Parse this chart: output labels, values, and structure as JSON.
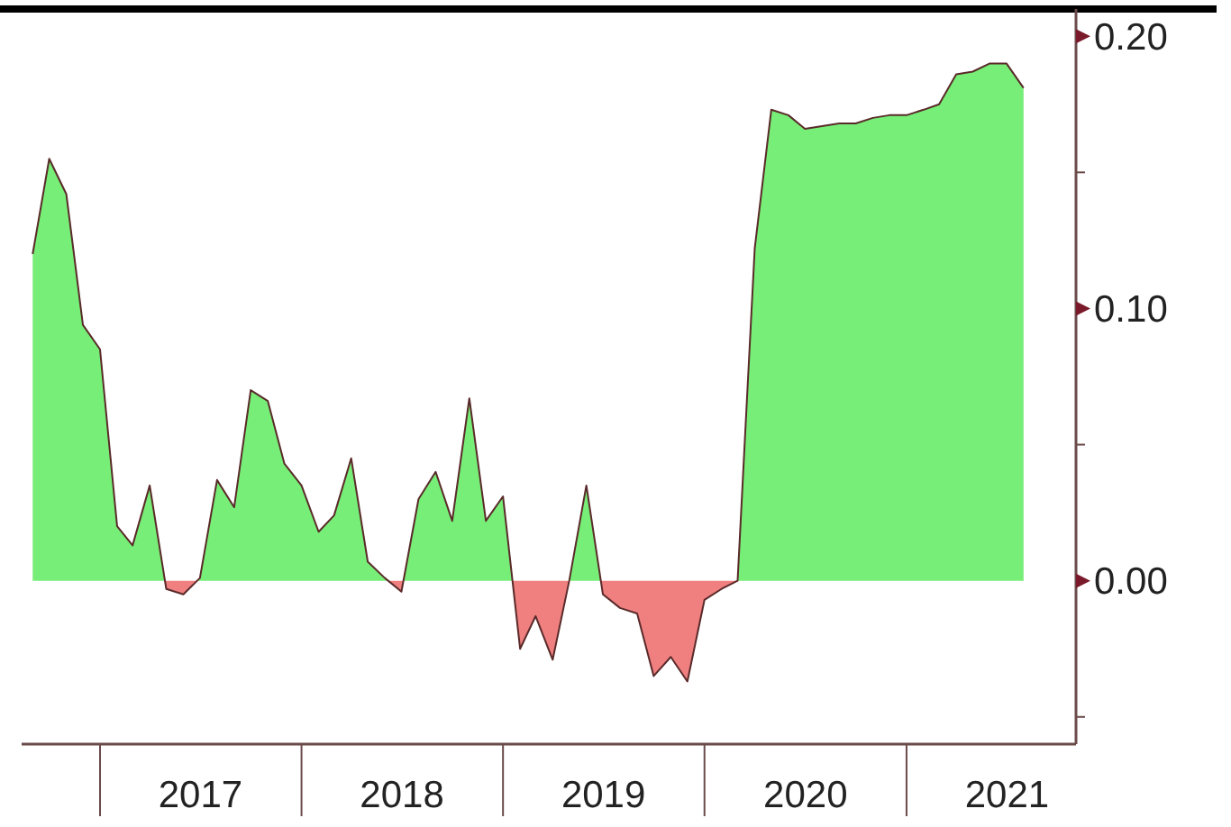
{
  "chart_data": {
    "type": "area",
    "x": [
      "2016-09",
      "2016-10",
      "2016-11",
      "2016-12",
      "2017-01",
      "2017-02",
      "2017-03",
      "2017-04",
      "2017-05",
      "2017-06",
      "2017-07",
      "2017-08",
      "2017-09",
      "2017-10",
      "2017-11",
      "2017-12",
      "2018-01",
      "2018-02",
      "2018-03",
      "2018-04",
      "2018-05",
      "2018-06",
      "2018-07",
      "2018-08",
      "2018-09",
      "2018-10",
      "2018-11",
      "2018-12",
      "2019-01",
      "2019-02",
      "2019-03",
      "2019-04",
      "2019-05",
      "2019-06",
      "2019-07",
      "2019-08",
      "2019-09",
      "2019-10",
      "2019-11",
      "2019-12",
      "2020-01",
      "2020-02",
      "2020-03",
      "2020-04",
      "2020-05",
      "2020-06",
      "2020-07",
      "2020-08",
      "2020-09",
      "2020-10",
      "2020-11",
      "2020-12",
      "2021-01",
      "2021-02",
      "2021-03",
      "2021-04",
      "2021-05",
      "2021-06",
      "2021-07",
      "2021-08"
    ],
    "series": [
      {
        "color": "#5a2a2a",
        "values": [
          0.12,
          0.155,
          0.142,
          0.094,
          0.085,
          0.02,
          0.013,
          0.035,
          -0.003,
          -0.005,
          0.001,
          0.037,
          0.027,
          0.07,
          0.066,
          0.043,
          0.035,
          0.018,
          0.024,
          0.045,
          0.007,
          0.001,
          -0.004,
          0.03,
          0.04,
          0.022,
          0.067,
          0.022,
          0.031,
          -0.025,
          -0.013,
          -0.029,
          0.0,
          0.035,
          -0.005,
          -0.01,
          -0.012,
          -0.035,
          -0.028,
          -0.037,
          -0.007,
          -0.003,
          0.0,
          0.122,
          0.173,
          0.171,
          0.166,
          0.167,
          0.168,
          0.168,
          0.17,
          0.171,
          0.171,
          0.173,
          0.175,
          0.186,
          0.187,
          0.19,
          0.19,
          0.181
        ],
        "colors": [
          "#77ee77",
          "#77ee77",
          "#77ee77",
          "#77ee77",
          "#77ee77",
          "#77ee77",
          "#77ee77",
          "#77ee77",
          "#f08080",
          "#f08080",
          "#77ee77",
          "#77ee77",
          "#77ee77",
          "#77ee77",
          "#77ee77",
          "#77ee77",
          "#77ee77",
          "#77ee77",
          "#77ee77",
          "#77ee77",
          "#77ee77",
          "#77ee77",
          "#f08080",
          "#77ee77",
          "#77ee77",
          "#77ee77",
          "#77ee77",
          "#77ee77",
          "#77ee77",
          "#f08080",
          "#f08080",
          "#f08080",
          "#77ee77",
          "#77ee77",
          "#f08080",
          "#f08080",
          "#f08080",
          "#f08080",
          "#f08080",
          "#f08080",
          "#f08080",
          "#f08080",
          "#77ee77",
          "#77ee77",
          "#77ee77",
          "#77ee77",
          "#77ee77",
          "#77ee77",
          "#77ee77",
          "#77ee77",
          "#77ee77",
          "#77ee77",
          "#77ee77",
          "#77ee77",
          "#77ee77",
          "#77ee77",
          "#77ee77",
          "#77ee77",
          "#77ee77",
          "#77ee77"
        ]
      }
    ],
    "xlim": [
      "2016-08-12",
      "2021-11-04"
    ],
    "xticks": [
      {
        "value": "2017-01-01",
        "label": null
      },
      {
        "value": "2017-07-02",
        "label": "2017"
      },
      {
        "value": "2018-01-01",
        "label": null
      },
      {
        "value": "2018-07-02",
        "label": "2018"
      },
      {
        "value": "2019-01-01",
        "label": null
      },
      {
        "value": "2019-07-02",
        "label": "2019"
      },
      {
        "value": "2020-01-01",
        "label": null
      },
      {
        "value": "2020-07-02",
        "label": "2020"
      },
      {
        "value": "2021-01-01",
        "label": null
      },
      {
        "value": "2021-07-02",
        "label": "2021"
      }
    ],
    "ylim": [
      -0.06,
      0.21
    ],
    "yticks": [
      {
        "value": -0.05,
        "label": null
      },
      {
        "value": 0,
        "label": "0.00"
      },
      {
        "value": 0.05,
        "label": null
      },
      {
        "value": 0.1,
        "label": "0.10"
      },
      {
        "value": 0.15,
        "label": null
      },
      {
        "value": 0.2,
        "label": "0.20"
      }
    ],
    "grid": false
  }
}
